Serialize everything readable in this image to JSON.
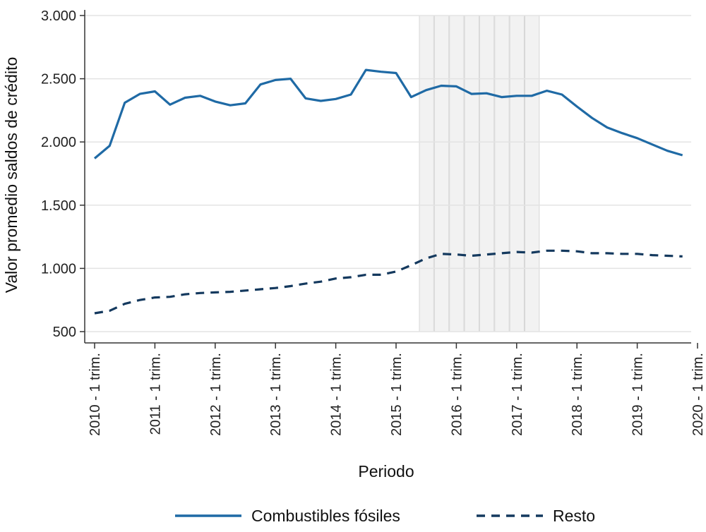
{
  "chart_data": {
    "type": "line",
    "xlabel": "Periodo",
    "ylabel": "Valor promedio saldos de crédito",
    "ylim": [
      500,
      3000
    ],
    "yticks": [
      "500",
      "1.000",
      "1.500",
      "2.000",
      "2.500",
      "3.000"
    ],
    "ytick_values": [
      500,
      1000,
      1500,
      2000,
      2500,
      3000
    ],
    "xticks": [
      "2010 - 1 trim.",
      "2011 - 1 trim.",
      "2012 - 1 trim.",
      "2013 - 1 trim.",
      "2014 - 1 trim.",
      "2015 - 1 trim.",
      "2016 - 1 trim.",
      "2017 - 1 trim.",
      "2018 - 1 trim.",
      "2019 - 1 trim.",
      "2020 - 1 trim."
    ],
    "xtick_index": [
      0,
      4,
      8,
      12,
      16,
      20,
      24,
      28,
      32,
      36,
      40
    ],
    "x": [
      "2010-Q1",
      "2010-Q2",
      "2010-Q3",
      "2010-Q4",
      "2011-Q1",
      "2011-Q2",
      "2011-Q3",
      "2011-Q4",
      "2012-Q1",
      "2012-Q2",
      "2012-Q3",
      "2012-Q4",
      "2013-Q1",
      "2013-Q2",
      "2013-Q3",
      "2013-Q4",
      "2014-Q1",
      "2014-Q2",
      "2014-Q3",
      "2014-Q4",
      "2015-Q1",
      "2015-Q2",
      "2015-Q3",
      "2015-Q4",
      "2016-Q1",
      "2016-Q2",
      "2016-Q3",
      "2016-Q4",
      "2017-Q1",
      "2017-Q2",
      "2017-Q3",
      "2017-Q4",
      "2018-Q1",
      "2018-Q2",
      "2018-Q3",
      "2018-Q4",
      "2019-Q1",
      "2019-Q2",
      "2019-Q3",
      "2019-Q4"
    ],
    "shaded_period": [
      "2015-Q3",
      "2017-Q2"
    ],
    "shaded_color": "#f2f2f2",
    "grid": true,
    "legend_position": "bottom",
    "series": [
      {
        "name": "Combustibles fósiles",
        "style": "solid",
        "color": "#1f6aa5",
        "values": [
          1870,
          1970,
          2310,
          2380,
          2400,
          2295,
          2350,
          2365,
          2320,
          2290,
          2305,
          2455,
          2490,
          2500,
          2345,
          2325,
          2340,
          2375,
          2570,
          2555,
          2545,
          2355,
          2410,
          2445,
          2440,
          2380,
          2385,
          2355,
          2365,
          2365,
          2405,
          2375,
          2280,
          2190,
          2115,
          2070,
          2030,
          1980,
          1930,
          1895
        ]
      },
      {
        "name": "Resto",
        "style": "dashed",
        "color": "#14395e",
        "values": [
          645,
          665,
          720,
          750,
          770,
          775,
          795,
          805,
          810,
          815,
          825,
          835,
          845,
          860,
          880,
          895,
          920,
          930,
          950,
          950,
          975,
          1025,
          1080,
          1115,
          1110,
          1100,
          1110,
          1120,
          1130,
          1125,
          1140,
          1140,
          1135,
          1120,
          1120,
          1115,
          1115,
          1105,
          1100,
          1095
        ]
      }
    ]
  }
}
